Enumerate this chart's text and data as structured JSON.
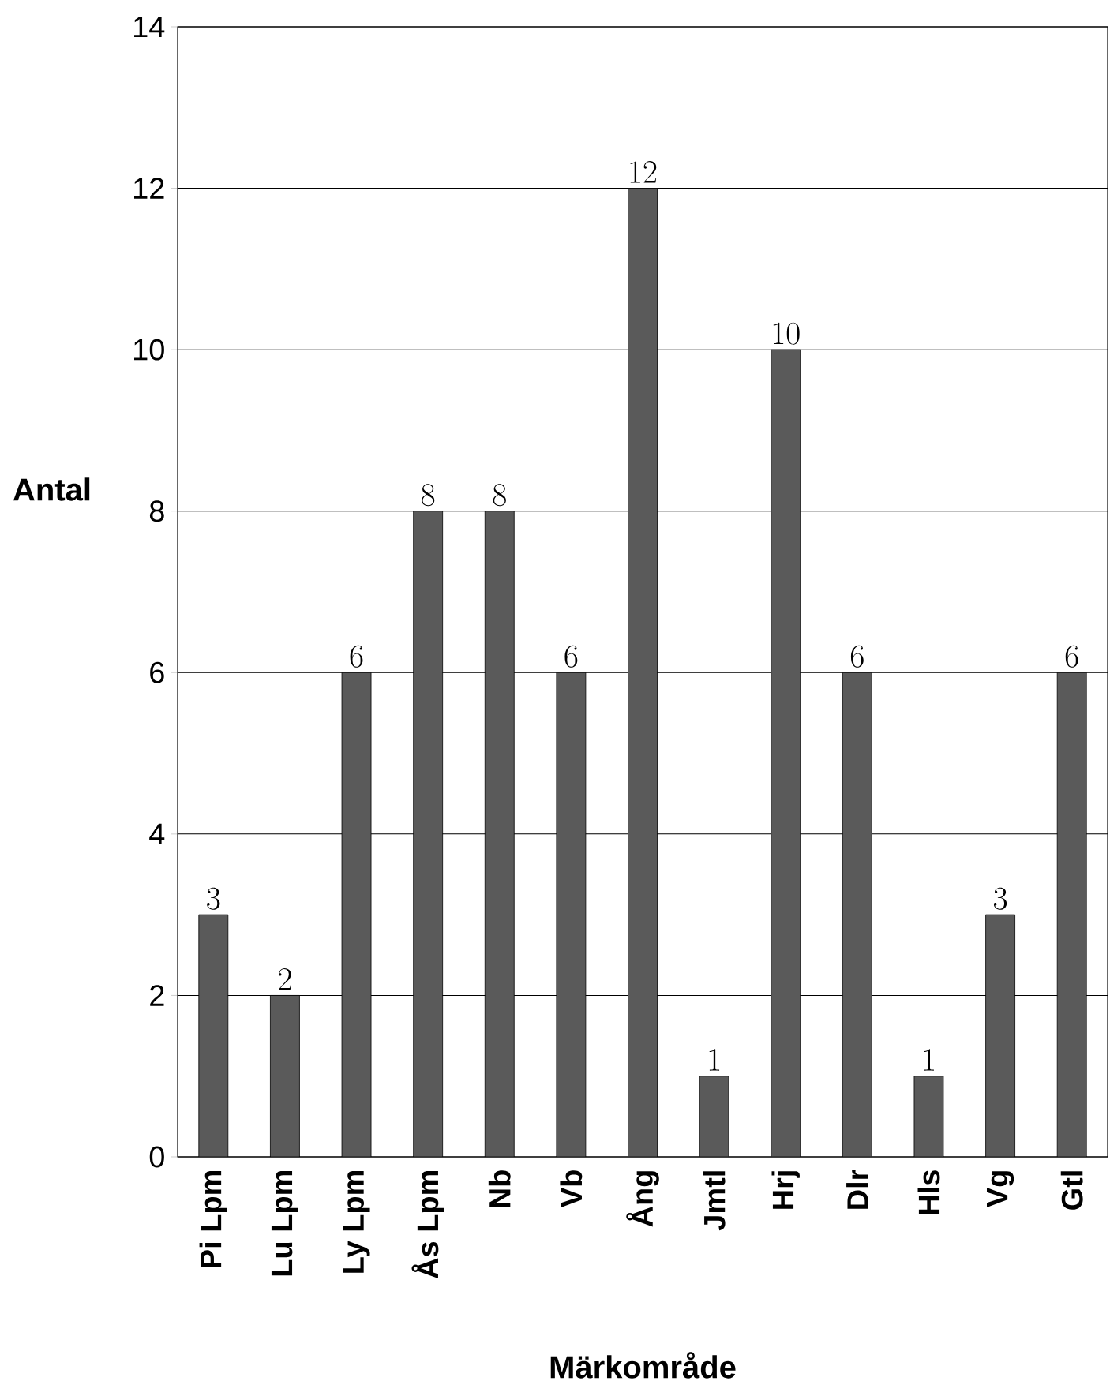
{
  "chart_data": {
    "type": "bar",
    "xlabel": "Märkområde",
    "ylabel": "Antal",
    "categories": [
      "Pi Lpm",
      "Lu Lpm",
      "Ly Lpm",
      "Ås Lpm",
      "Nb",
      "Vb",
      "Ång",
      "Jmtl",
      "Hrj",
      "Dlr",
      "Hls",
      "Vg",
      "Gtl"
    ],
    "values": [
      3,
      2,
      6,
      8,
      8,
      6,
      12,
      1,
      10,
      6,
      1,
      3,
      6
    ],
    "color": "#5a5a5a",
    "ylim": [
      0,
      14
    ],
    "yticks": [
      0,
      2,
      4,
      6,
      8,
      10,
      12,
      14
    ],
    "grid": "y",
    "data_labels": true
  }
}
